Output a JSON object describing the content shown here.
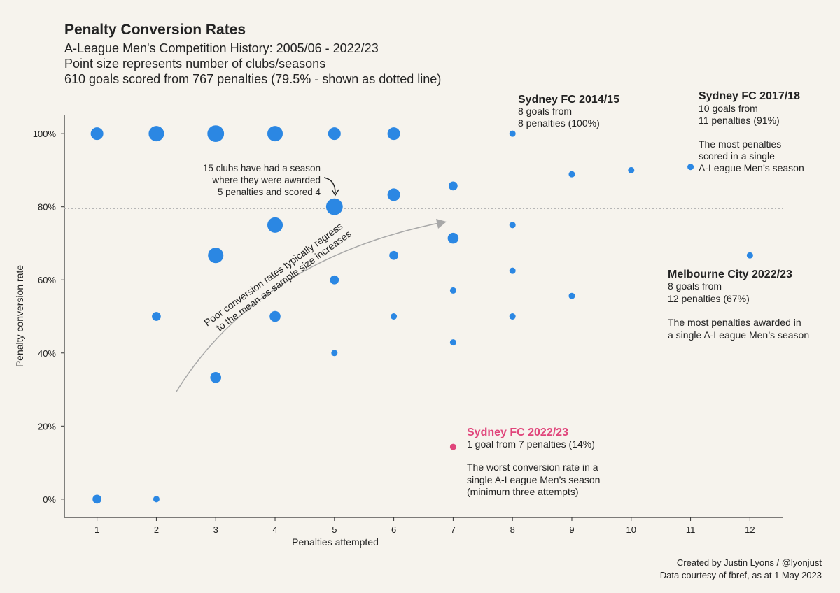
{
  "header": {
    "title": "Penalty Conversion Rates",
    "subtitle": "A-League Men's Competition History: 2005/06 - 2022/23",
    "note1": "Point size represents number of clubs/seasons",
    "note2": "610 goals scored from 767 penalties (79.5% - shown as dotted line)"
  },
  "footer": {
    "credit": "Created by Justin Lyons / @lyonjust",
    "source": "Data courtesy of fbref, as at 1 May 2023"
  },
  "colors": {
    "point": "#2b87e3",
    "highlight": "#e0457b",
    "background": "#f6f3ed",
    "arrow": "#a8a8a8"
  },
  "chart_data": {
    "type": "scatter",
    "xlabel": "Penalties attempted",
    "ylabel": "Penalty conversion rate",
    "xlim": [
      0.45,
      12.55
    ],
    "ylim": [
      -0.05,
      1.05
    ],
    "xticks": [
      1,
      2,
      3,
      4,
      5,
      6,
      7,
      8,
      9,
      10,
      11,
      12
    ],
    "yticks": [
      {
        "value": 0,
        "label": "0%"
      },
      {
        "value": 0.2,
        "label": "20%"
      },
      {
        "value": 0.4,
        "label": "40%"
      },
      {
        "value": 0.6,
        "label": "60%"
      },
      {
        "value": 0.8,
        "label": "80%"
      },
      {
        "value": 1.0,
        "label": "100%"
      }
    ],
    "reference_line": 0.795,
    "grid": false,
    "points": [
      {
        "x": 1,
        "y": 1.0,
        "size": 4
      },
      {
        "x": 1,
        "y": 0.0,
        "size": 2
      },
      {
        "x": 2,
        "y": 1.0,
        "size": 6
      },
      {
        "x": 2,
        "y": 0.5,
        "size": 2
      },
      {
        "x": 2,
        "y": 0.0,
        "size": 1
      },
      {
        "x": 3,
        "y": 1.0,
        "size": 7
      },
      {
        "x": 3,
        "y": 0.667,
        "size": 6
      },
      {
        "x": 3,
        "y": 0.333,
        "size": 3
      },
      {
        "x": 4,
        "y": 1.0,
        "size": 6
      },
      {
        "x": 4,
        "y": 0.75,
        "size": 6
      },
      {
        "x": 4,
        "y": 0.5,
        "size": 3
      },
      {
        "x": 5,
        "y": 1.0,
        "size": 4
      },
      {
        "x": 5,
        "y": 0.8,
        "size": 7
      },
      {
        "x": 5,
        "y": 0.6,
        "size": 2
      },
      {
        "x": 5,
        "y": 0.4,
        "size": 1
      },
      {
        "x": 6,
        "y": 1.0,
        "size": 4
      },
      {
        "x": 6,
        "y": 0.833,
        "size": 4
      },
      {
        "x": 6,
        "y": 0.667,
        "size": 2
      },
      {
        "x": 6,
        "y": 0.5,
        "size": 1
      },
      {
        "x": 7,
        "y": 0.857,
        "size": 2
      },
      {
        "x": 7,
        "y": 0.714,
        "size": 3
      },
      {
        "x": 7,
        "y": 0.571,
        "size": 1
      },
      {
        "x": 7,
        "y": 0.429,
        "size": 1
      },
      {
        "x": 7,
        "y": 0.143,
        "size": 1,
        "highlight": true
      },
      {
        "x": 8,
        "y": 1.0,
        "size": 1
      },
      {
        "x": 8,
        "y": 0.75,
        "size": 1
      },
      {
        "x": 8,
        "y": 0.625,
        "size": 1
      },
      {
        "x": 8,
        "y": 0.5,
        "size": 1
      },
      {
        "x": 9,
        "y": 0.889,
        "size": 1
      },
      {
        "x": 9,
        "y": 0.556,
        "size": 1
      },
      {
        "x": 10,
        "y": 0.9,
        "size": 1
      },
      {
        "x": 11,
        "y": 0.909,
        "size": 1
      },
      {
        "x": 12,
        "y": 0.667,
        "size": 1
      }
    ],
    "annotations": {
      "syd1415": {
        "title": "Sydney FC 2014/15",
        "line1": "8 goals from",
        "line2": "8 penalties (100%)"
      },
      "syd1718": {
        "title": "Sydney FC 2017/18",
        "line1": "10 goals from",
        "line2": "11 penalties (91%)",
        "line3": "The most penalties",
        "line4": "scored in a single",
        "line5": "A-League Men’s season"
      },
      "mcy2223": {
        "title": "Melbourne City 2022/23",
        "line1": "8 goals from",
        "line2": "12 penalties (67%)",
        "line3": "The most penalties awarded in",
        "line4": "a single A-League Men’s season"
      },
      "syd2223": {
        "title": "Sydney FC 2022/23",
        "line1": "1 goal from 7 penalties (14%)",
        "line2": "The worst conversion rate in a",
        "line3": "single A-League Men’s season",
        "line4": "(minimum three attempts)"
      },
      "clubs15": {
        "line1": "15 clubs have had a season",
        "line2": "where they were awarded",
        "line3": "5 penalties and scored 4"
      },
      "regress": {
        "line1": "Poor conversion rates typically regress",
        "line2": "to the mean as sample size increases"
      }
    }
  }
}
